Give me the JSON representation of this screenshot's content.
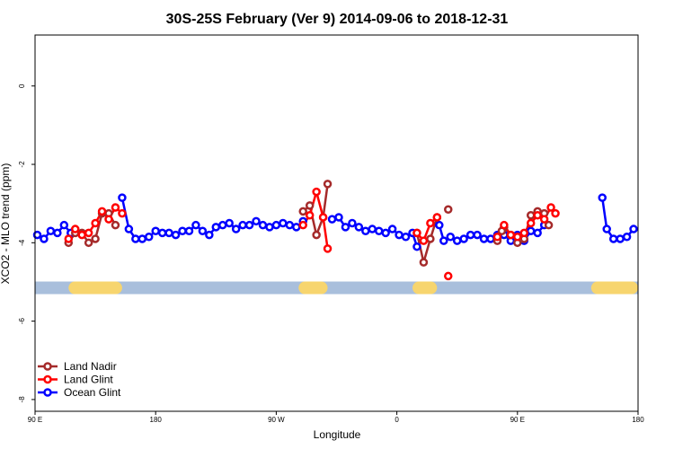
{
  "chart_data": {
    "type": "line",
    "title": "30S-25S February (Ver 9)   2014-09-06 to 2018-12-31",
    "xlabel": "Longitude",
    "ylabel": "XCO2 - MLO trend (ppm)",
    "xlim": [
      -90,
      180
    ],
    "ylim": [
      -8.3,
      1.3
    ],
    "x_ticks": [
      {
        "value": -90,
        "label": "90 E"
      },
      {
        "value": -36,
        "label": "180"
      },
      {
        "value": 18,
        "label": "90 W"
      },
      {
        "value": 72,
        "label": "0"
      },
      {
        "value": 126,
        "label": "90 E"
      },
      {
        "value": 180,
        "label": "180"
      }
    ],
    "y_ticks": [
      0,
      -2,
      -4,
      -6,
      -8
    ],
    "land_band": {
      "y": -5.15,
      "ocean_color": "#a9bfdc",
      "land_color": "#f7d56e",
      "land_segments": [
        [
          -75,
          -51
        ],
        [
          28,
          41
        ],
        [
          79,
          90
        ],
        [
          159,
          183
        ]
      ]
    },
    "legend": {
      "position": "bottom-left",
      "entries": [
        {
          "label": "Land Nadir",
          "color": "#a52a2a"
        },
        {
          "label": "Land Glint",
          "color": "#ff0000"
        },
        {
          "label": "Ocean Glint",
          "color": "#0000ff"
        }
      ]
    },
    "series": [
      {
        "name": "Ocean Glint",
        "color": "#0000ff",
        "points": [
          [
            -89,
            -3.8
          ],
          [
            -86,
            -3.9
          ],
          [
            -83,
            -3.7
          ],
          [
            -80,
            -3.75
          ],
          [
            -77,
            -3.55
          ],
          [
            -74,
            -3.75
          ],
          [
            -51,
            -2.85
          ],
          [
            -48,
            -3.65
          ],
          [
            -45,
            -3.9
          ],
          [
            -42,
            -3.9
          ],
          [
            -39,
            -3.85
          ],
          [
            -36,
            -3.7
          ],
          [
            -33,
            -3.75
          ],
          [
            -30,
            -3.75
          ],
          [
            -27,
            -3.8
          ],
          [
            -24,
            -3.7
          ],
          [
            -21,
            -3.7
          ],
          [
            -18,
            -3.55
          ],
          [
            -15,
            -3.7
          ],
          [
            -12,
            -3.8
          ],
          [
            -9,
            -3.6
          ],
          [
            -6,
            -3.55
          ],
          [
            -3,
            -3.5
          ],
          [
            0,
            -3.65
          ],
          [
            3,
            -3.55
          ],
          [
            6,
            -3.55
          ],
          [
            9,
            -3.45
          ],
          [
            12,
            -3.55
          ],
          [
            15,
            -3.6
          ],
          [
            18,
            -3.55
          ],
          [
            21,
            -3.5
          ],
          [
            24,
            -3.55
          ],
          [
            27,
            -3.6
          ],
          [
            30,
            -3.45
          ],
          [
            43,
            -3.4
          ],
          [
            46,
            -3.35
          ],
          [
            49,
            -3.6
          ],
          [
            52,
            -3.5
          ],
          [
            55,
            -3.6
          ],
          [
            58,
            -3.7
          ],
          [
            61,
            -3.65
          ],
          [
            64,
            -3.7
          ],
          [
            67,
            -3.75
          ],
          [
            70,
            -3.65
          ],
          [
            73,
            -3.8
          ],
          [
            76,
            -3.85
          ],
          [
            79,
            -3.75
          ],
          [
            81,
            -4.1
          ],
          [
            91,
            -3.55
          ],
          [
            93,
            -3.95
          ],
          [
            96,
            -3.85
          ],
          [
            99,
            -3.95
          ],
          [
            102,
            -3.9
          ],
          [
            105,
            -3.8
          ],
          [
            108,
            -3.8
          ],
          [
            111,
            -3.9
          ],
          [
            114,
            -3.9
          ],
          [
            117,
            -3.8
          ],
          [
            120,
            -3.8
          ],
          [
            123,
            -3.95
          ],
          [
            126,
            -3.8
          ],
          [
            129,
            -3.95
          ],
          [
            132,
            -3.7
          ],
          [
            135,
            -3.75
          ],
          [
            138,
            -3.55
          ],
          [
            164,
            -2.85
          ],
          [
            166,
            -3.65
          ],
          [
            169,
            -3.9
          ],
          [
            172,
            -3.9
          ],
          [
            175,
            -3.85
          ],
          [
            178,
            -3.65
          ]
        ]
      },
      {
        "name": "Land Nadir",
        "color": "#a52a2a",
        "segments": [
          [
            [
              -75,
              -4.0
            ],
            [
              -72,
              -3.75
            ],
            [
              -69,
              -3.75
            ],
            [
              -66,
              -4.0
            ],
            [
              -63,
              -3.9
            ],
            [
              -60,
              -3.25
            ],
            [
              -57,
              -3.25
            ],
            [
              -54,
              -3.55
            ]
          ],
          [
            [
              30,
              -3.2
            ],
            [
              33,
              -3.05
            ],
            [
              36,
              -3.8
            ],
            [
              39,
              -3.35
            ],
            [
              41,
              -2.5
            ]
          ],
          [
            [
              81,
              -3.75
            ],
            [
              84,
              -4.5
            ],
            [
              87,
              -3.9
            ],
            [
              90,
              -3.35
            ]
          ],
          [
            [
              117,
              -3.9
            ],
            [
              120,
              -3.6
            ],
            [
              123,
              -3.8
            ],
            [
              126,
              -4.0
            ],
            [
              129,
              -3.9
            ],
            [
              132,
              -3.3
            ],
            [
              135,
              -3.2
            ],
            [
              138,
              -3.25
            ],
            [
              140,
              -3.55
            ]
          ],
          [
            [
              117,
              -3.95
            ],
            [
              119,
              -3.7
            ]
          ]
        ],
        "isolated": [
          [
            118,
            -3.85
          ],
          [
            118,
            -3.85
          ]
        ],
        "isolated_points": [
          [
            117,
            -3.9
          ],
          [
            132,
            -3.3
          ]
        ]
      },
      {
        "name": "Land Glint",
        "color": "#ff0000",
        "segments": [
          [
            [
              -75,
              -3.9
            ],
            [
              -72,
              -3.65
            ],
            [
              -69,
              -3.8
            ],
            [
              -66,
              -3.75
            ],
            [
              -63,
              -3.5
            ],
            [
              -60,
              -3.2
            ],
            [
              -57,
              -3.4
            ],
            [
              -54,
              -3.1
            ],
            [
              -51,
              -3.25
            ]
          ],
          [
            [
              30,
              -3.55
            ],
            [
              33,
              -3.3
            ],
            [
              36,
              -2.7
            ],
            [
              39,
              -3.35
            ],
            [
              41,
              -4.15
            ]
          ],
          [
            [
              81,
              -3.75
            ],
            [
              84,
              -3.95
            ],
            [
              87,
              -3.5
            ],
            [
              90,
              -3.35
            ]
          ],
          [
            [
              117,
              -3.85
            ],
            [
              120,
              -3.55
            ],
            [
              123,
              -3.8
            ],
            [
              126,
              -3.85
            ],
            [
              129,
              -3.75
            ],
            [
              132,
              -3.5
            ],
            [
              135,
              -3.3
            ],
            [
              138,
              -3.4
            ],
            [
              141,
              -3.1
            ],
            [
              143,
              -3.25
            ]
          ]
        ],
        "isolated_points": [
          [
            95,
            -4.85
          ]
        ]
      }
    ],
    "extra_nadir_points": [
      [
        95,
        -3.15
      ]
    ]
  }
}
